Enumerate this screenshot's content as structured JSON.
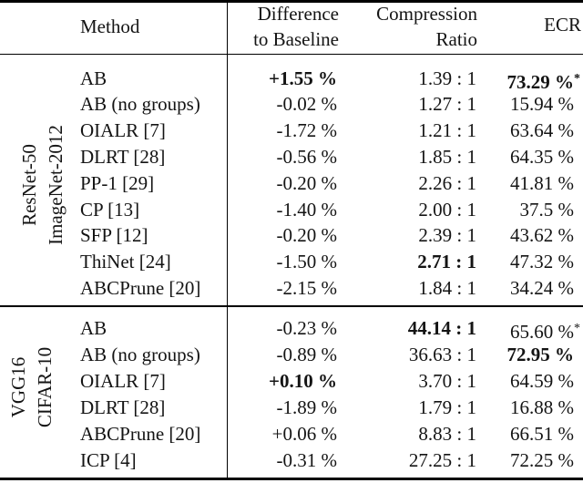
{
  "colors": {
    "background": "#ffffff",
    "text": "#141414",
    "rule": "#000000"
  },
  "table": {
    "header": {
      "method": "Method",
      "difference_line1": "Difference",
      "difference_line2": "to Baseline",
      "compression_line1": "Compression",
      "compression_line2": "Ratio",
      "ecr": "ECR"
    },
    "groups": [
      {
        "model": "ResNet-50",
        "dataset": "ImageNet-2012",
        "rows": [
          {
            "method": "AB",
            "diff": "+1.55 %",
            "diff_bold": true,
            "comp": "1.39 : 1",
            "comp_bold": false,
            "ecr": "73.29 %",
            "ecr_bold": true,
            "ecr_star": true
          },
          {
            "method": "AB (no groups)",
            "diff": "-0.02 %",
            "diff_bold": false,
            "comp": "1.27 : 1",
            "comp_bold": false,
            "ecr": "15.94 %",
            "ecr_bold": false,
            "ecr_star": false
          },
          {
            "method": "OIALR [7]",
            "diff": "-1.72 %",
            "diff_bold": false,
            "comp": "1.21 : 1",
            "comp_bold": false,
            "ecr": "63.64 %",
            "ecr_bold": false,
            "ecr_star": false
          },
          {
            "method": "DLRT [28]",
            "diff": "-0.56 %",
            "diff_bold": false,
            "comp": "1.85 : 1",
            "comp_bold": false,
            "ecr": "64.35 %",
            "ecr_bold": false,
            "ecr_star": false
          },
          {
            "method": "PP-1 [29]",
            "diff": "-0.20 %",
            "diff_bold": false,
            "comp": "2.26 : 1",
            "comp_bold": false,
            "ecr": "41.81 %",
            "ecr_bold": false,
            "ecr_star": false
          },
          {
            "method": "CP [13]",
            "diff": "-1.40 %",
            "diff_bold": false,
            "comp": "2.00 : 1",
            "comp_bold": false,
            "ecr": "37.5 %",
            "ecr_bold": false,
            "ecr_star": false
          },
          {
            "method": "SFP [12]",
            "diff": "-0.20 %",
            "diff_bold": false,
            "comp": "2.39 : 1",
            "comp_bold": false,
            "ecr": "43.62 %",
            "ecr_bold": false,
            "ecr_star": false
          },
          {
            "method": "ThiNet [24]",
            "diff": "-1.50 %",
            "diff_bold": false,
            "comp": "2.71 : 1",
            "comp_bold": true,
            "ecr": "47.32 %",
            "ecr_bold": false,
            "ecr_star": false
          },
          {
            "method": "ABCPrune [20]",
            "diff": "-2.15 %",
            "diff_bold": false,
            "comp": "1.84 : 1",
            "comp_bold": false,
            "ecr": "34.24 %",
            "ecr_bold": false,
            "ecr_star": false
          }
        ]
      },
      {
        "model": "VGG16",
        "dataset": "CIFAR-10",
        "rows": [
          {
            "method": "AB",
            "diff": "-0.23 %",
            "diff_bold": false,
            "comp": "44.14 : 1",
            "comp_bold": true,
            "ecr": "65.60 %",
            "ecr_bold": false,
            "ecr_star": true
          },
          {
            "method": "AB (no groups)",
            "diff": "-0.89 %",
            "diff_bold": false,
            "comp": "36.63 : 1",
            "comp_bold": false,
            "ecr": "72.95 %",
            "ecr_bold": true,
            "ecr_star": false
          },
          {
            "method": "OIALR [7]",
            "diff": "+0.10 %",
            "diff_bold": true,
            "comp": "3.70 : 1",
            "comp_bold": false,
            "ecr": "64.59 %",
            "ecr_bold": false,
            "ecr_star": false
          },
          {
            "method": "DLRT [28]",
            "diff": "-1.89 %",
            "diff_bold": false,
            "comp": "1.79 : 1",
            "comp_bold": false,
            "ecr": "16.88 %",
            "ecr_bold": false,
            "ecr_star": false
          },
          {
            "method": "ABCPrune [20]",
            "diff": "+0.06 %",
            "diff_bold": false,
            "comp": "8.83 : 1",
            "comp_bold": false,
            "ecr": "66.51 %",
            "ecr_bold": false,
            "ecr_star": false
          },
          {
            "method": "ICP [4]",
            "diff": "-0.31 %",
            "diff_bold": false,
            "comp": "27.25 : 1",
            "comp_bold": false,
            "ecr": "72.25 %",
            "ecr_bold": false,
            "ecr_star": false
          }
        ]
      }
    ]
  }
}
